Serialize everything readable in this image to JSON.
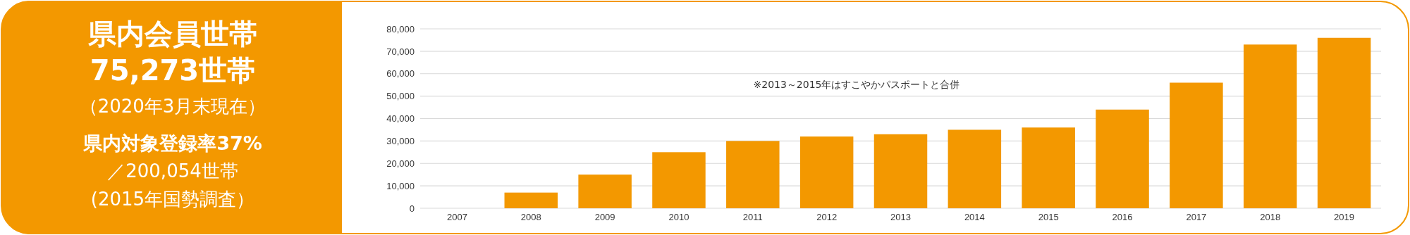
{
  "chart_data": {
    "type": "bar",
    "title": "県内会員世帯",
    "subtitle": "75,273世帯",
    "annotations": [
      "（2020年3月末現在）",
      "県内対象登録率37%",
      "／200,054世帯",
      "(2015年国勢調査）",
      "※2013～2015年はすこやかパスポートと合併"
    ],
    "categories": [
      "2007",
      "2008",
      "2009",
      "2010",
      "2011",
      "2012",
      "2013",
      "2014",
      "2015",
      "2016",
      "2017",
      "2018",
      "2019"
    ],
    "values": [
      0,
      7000,
      15000,
      25000,
      30000,
      32000,
      33000,
      35000,
      36000,
      44000,
      56000,
      73000,
      76000
    ],
    "color": "#f39800",
    "ylim": [
      0,
      80000
    ],
    "yticks": [
      {
        "value": 0,
        "label": "0"
      },
      {
        "value": 10000,
        "label": "10,000"
      },
      {
        "value": 20000,
        "label": "20,000"
      },
      {
        "value": 30000,
        "label": "30,000"
      },
      {
        "value": 40000,
        "label": "40,000"
      },
      {
        "value": 50000,
        "label": "50,000"
      },
      {
        "value": 60000,
        "label": "60,000"
      },
      {
        "value": 70000,
        "label": "70,000"
      },
      {
        "value": 80000,
        "label": "80,000"
      }
    ],
    "grid": "y"
  }
}
